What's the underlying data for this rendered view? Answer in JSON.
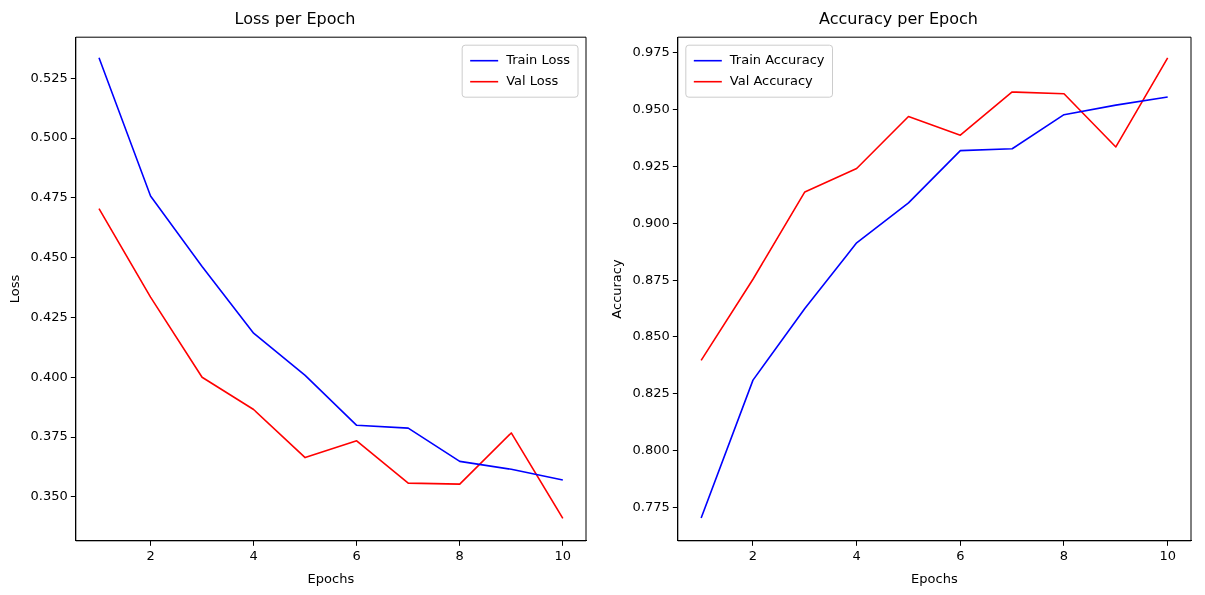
{
  "chart_data": [
    {
      "type": "line",
      "title": "Loss per Epoch",
      "xlabel": "Epochs",
      "ylabel": "Loss",
      "x": [
        1,
        2,
        3,
        4,
        5,
        6,
        7,
        8,
        9,
        10
      ],
      "series": [
        {
          "name": "Train Loss",
          "color": "#0000ff",
          "values": [
            0.5336,
            0.4758,
            0.4463,
            0.4184,
            0.4008,
            0.3799,
            0.3787,
            0.3648,
            0.3615,
            0.357
          ]
        },
        {
          "name": "Val Loss",
          "color": "#ff0000",
          "values": [
            0.4705,
            0.4335,
            0.4,
            0.3865,
            0.3664,
            0.3734,
            0.3557,
            0.3553,
            0.3767,
            0.341
          ]
        }
      ],
      "xlim": [
        0.55,
        10.45
      ],
      "xticks": [
        2,
        4,
        6,
        8,
        10
      ],
      "ylim": [
        0.3316,
        0.5422
      ],
      "yticks": [
        {
          "value": 0.35,
          "label": "0.350"
        },
        0.375,
        {
          "value": 0.4,
          "label": "0.400"
        },
        0.425,
        {
          "value": 0.45,
          "label": "0.450"
        },
        0.475,
        {
          "value": 0.5,
          "label": "0.500"
        },
        0.525
      ],
      "grid": false,
      "legend": "top right",
      "marker": "none",
      "line_style": "solid"
    },
    {
      "type": "line",
      "title": "Accuracy per Epoch",
      "xlabel": "Epochs",
      "ylabel": "Accuracy",
      "x": [
        1,
        2,
        3,
        4,
        5,
        6,
        7,
        8,
        9,
        10
      ],
      "series": [
        {
          "name": "Train Accuracy",
          "color": "#0000ff",
          "values": [
            0.7703,
            0.831,
            0.8625,
            0.8914,
            0.909,
            0.932,
            0.9328,
            0.9478,
            0.952,
            0.9556
          ]
        },
        {
          "name": "Val Accuracy",
          "color": "#ff0000",
          "values": [
            0.8397,
            0.8754,
            0.9138,
            0.9241,
            0.947,
            0.9388,
            0.9578,
            0.957,
            0.9336,
            0.9728
          ]
        }
      ],
      "xlim": [
        0.55,
        10.45
      ],
      "xticks": [
        2,
        4,
        6,
        8,
        10
      ],
      "ylim": [
        0.7603,
        0.9819
      ],
      "yticks": [
        0.775,
        {
          "value": 0.8,
          "label": "0.800"
        },
        0.825,
        {
          "value": 0.85,
          "label": "0.850"
        },
        0.875,
        {
          "value": 0.9,
          "label": "0.900"
        },
        0.925,
        {
          "value": 0.95,
          "label": "0.950"
        },
        0.975
      ],
      "grid": false,
      "legend": "top left",
      "marker": "none",
      "line_style": "solid"
    }
  ]
}
